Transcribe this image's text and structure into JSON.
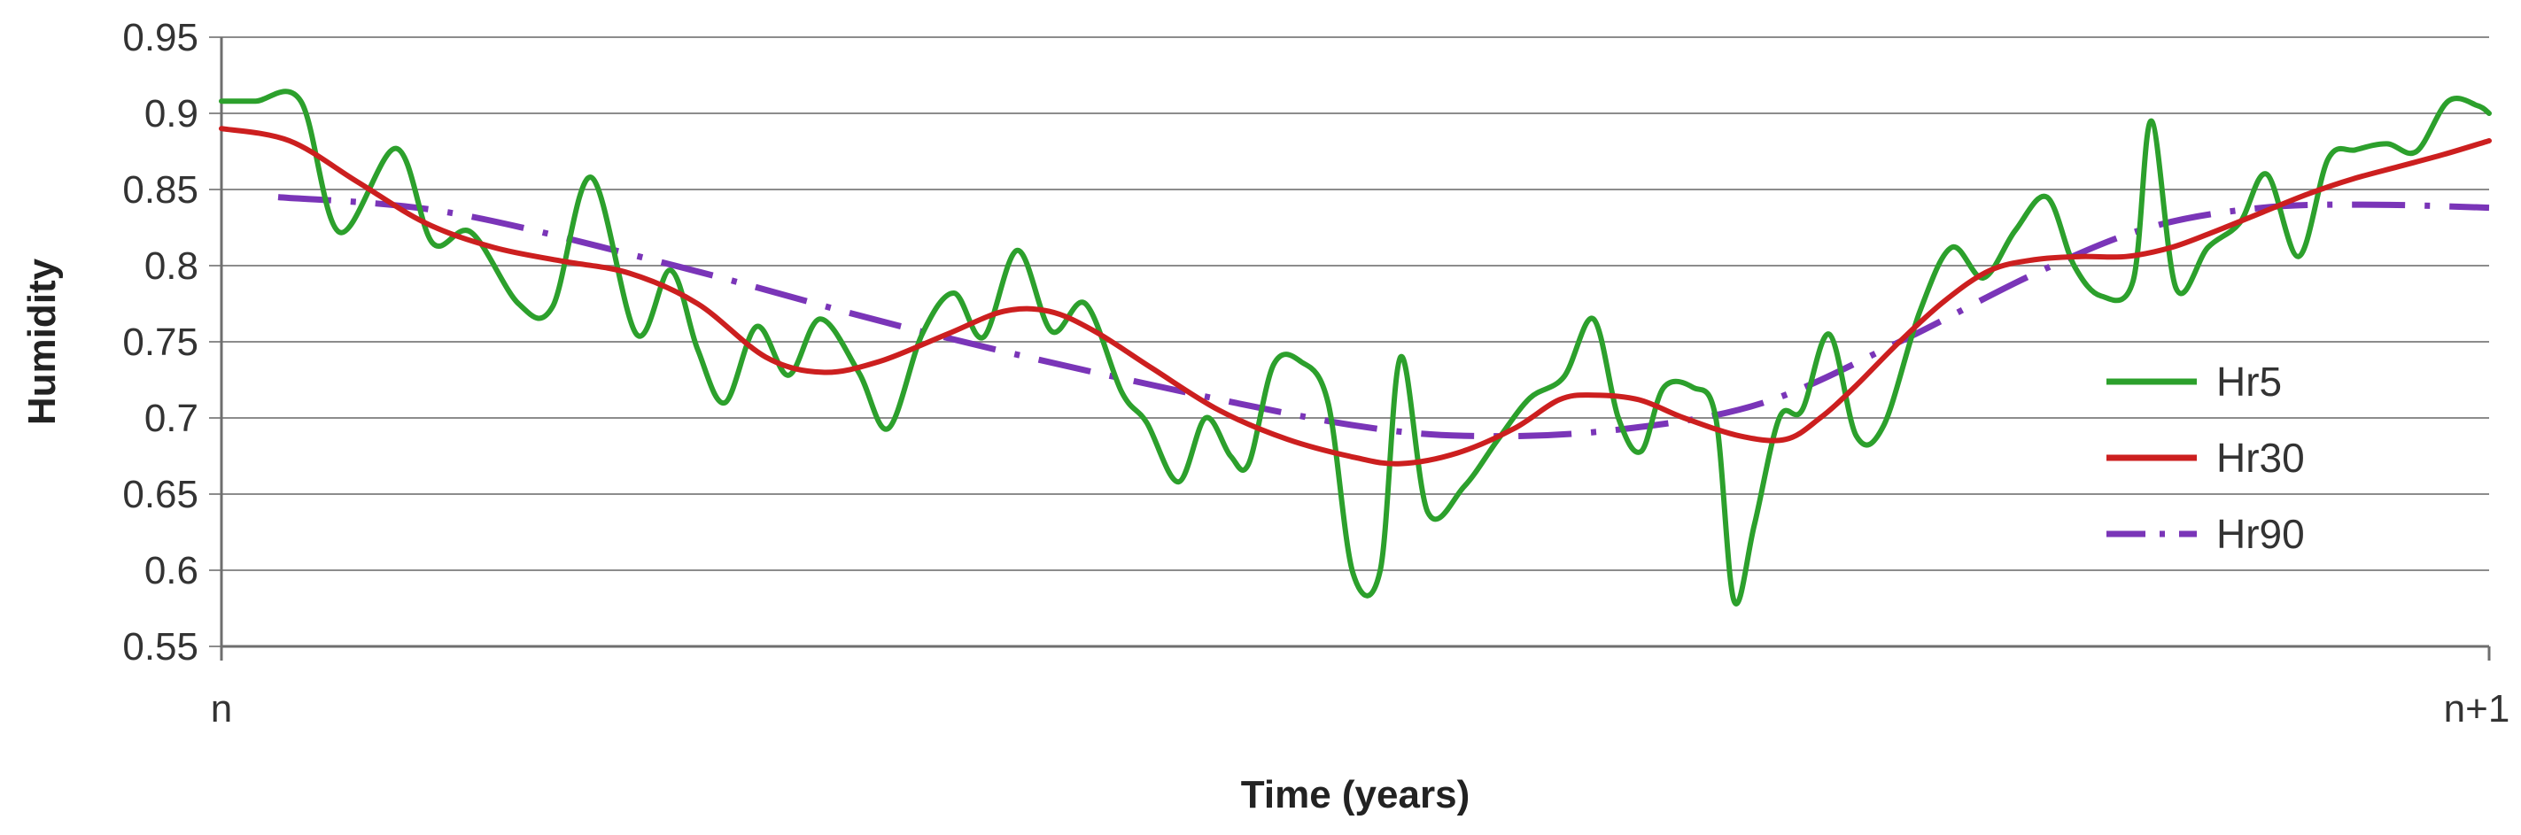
{
  "chart_data": {
    "type": "line",
    "title": "",
    "xlabel": "Time (years)",
    "ylabel": "Humidity",
    "x_tick_labels": [
      "n",
      "n+1"
    ],
    "xlim": [
      0,
      1
    ],
    "ylim": [
      0.55,
      0.95
    ],
    "y_ticks": [
      0.55,
      0.6,
      0.65,
      0.7,
      0.75,
      0.8,
      0.85,
      0.9,
      0.95
    ],
    "y_tick_labels": [
      "0.55",
      "0.6",
      "0.65",
      "0.7",
      "0.75",
      "0.8",
      "0.85",
      "0.9",
      "0.95"
    ],
    "grid": true,
    "legend_position": "right",
    "series": [
      {
        "name": "Hr5",
        "color": "#2ca02c",
        "style": "solid",
        "points": [
          [
            0.0,
            0.908
          ],
          [
            0.015,
            0.908
          ],
          [
            0.035,
            0.908
          ],
          [
            0.052,
            0.822
          ],
          [
            0.077,
            0.877
          ],
          [
            0.093,
            0.815
          ],
          [
            0.11,
            0.822
          ],
          [
            0.131,
            0.775
          ],
          [
            0.146,
            0.773
          ],
          [
            0.163,
            0.858
          ],
          [
            0.183,
            0.755
          ],
          [
            0.198,
            0.797
          ],
          [
            0.21,
            0.745
          ],
          [
            0.222,
            0.71
          ],
          [
            0.236,
            0.76
          ],
          [
            0.25,
            0.728
          ],
          [
            0.264,
            0.765
          ],
          [
            0.281,
            0.73
          ],
          [
            0.294,
            0.693
          ],
          [
            0.309,
            0.755
          ],
          [
            0.323,
            0.782
          ],
          [
            0.336,
            0.753
          ],
          [
            0.351,
            0.81
          ],
          [
            0.366,
            0.757
          ],
          [
            0.381,
            0.775
          ],
          [
            0.397,
            0.717
          ],
          [
            0.408,
            0.697
          ],
          [
            0.422,
            0.658
          ],
          [
            0.434,
            0.7
          ],
          [
            0.445,
            0.675
          ],
          [
            0.453,
            0.67
          ],
          [
            0.464,
            0.735
          ],
          [
            0.476,
            0.737
          ],
          [
            0.488,
            0.71
          ],
          [
            0.499,
            0.598
          ],
          [
            0.511,
            0.6
          ],
          [
            0.52,
            0.74
          ],
          [
            0.532,
            0.638
          ],
          [
            0.548,
            0.655
          ],
          [
            0.563,
            0.686
          ],
          [
            0.577,
            0.713
          ],
          [
            0.592,
            0.727
          ],
          [
            0.605,
            0.765
          ],
          [
            0.616,
            0.7
          ],
          [
            0.626,
            0.678
          ],
          [
            0.636,
            0.72
          ],
          [
            0.649,
            0.72
          ],
          [
            0.659,
            0.7
          ],
          [
            0.667,
            0.58
          ],
          [
            0.676,
            0.63
          ],
          [
            0.687,
            0.7
          ],
          [
            0.697,
            0.705
          ],
          [
            0.709,
            0.755
          ],
          [
            0.721,
            0.688
          ],
          [
            0.733,
            0.695
          ],
          [
            0.749,
            0.77
          ],
          [
            0.763,
            0.812
          ],
          [
            0.777,
            0.792
          ],
          [
            0.791,
            0.823
          ],
          [
            0.805,
            0.845
          ],
          [
            0.817,
            0.8
          ],
          [
            0.829,
            0.78
          ],
          [
            0.843,
            0.79
          ],
          [
            0.851,
            0.895
          ],
          [
            0.862,
            0.785
          ],
          [
            0.876,
            0.812
          ],
          [
            0.89,
            0.828
          ],
          [
            0.902,
            0.86
          ],
          [
            0.916,
            0.806
          ],
          [
            0.929,
            0.87
          ],
          [
            0.941,
            0.876
          ],
          [
            0.955,
            0.88
          ],
          [
            0.968,
            0.875
          ],
          [
            0.982,
            0.908
          ],
          [
            0.995,
            0.905
          ],
          [
            1.0,
            0.9
          ]
        ]
      },
      {
        "name": "Hr30",
        "color": "#cc1f1f",
        "style": "solid",
        "points": [
          [
            0.0,
            0.89
          ],
          [
            0.03,
            0.882
          ],
          [
            0.06,
            0.855
          ],
          [
            0.09,
            0.828
          ],
          [
            0.12,
            0.812
          ],
          [
            0.15,
            0.803
          ],
          [
            0.18,
            0.795
          ],
          [
            0.21,
            0.775
          ],
          [
            0.24,
            0.74
          ],
          [
            0.265,
            0.73
          ],
          [
            0.29,
            0.737
          ],
          [
            0.32,
            0.755
          ],
          [
            0.345,
            0.77
          ],
          [
            0.365,
            0.77
          ],
          [
            0.385,
            0.757
          ],
          [
            0.41,
            0.733
          ],
          [
            0.44,
            0.705
          ],
          [
            0.47,
            0.686
          ],
          [
            0.5,
            0.674
          ],
          [
            0.52,
            0.67
          ],
          [
            0.545,
            0.677
          ],
          [
            0.57,
            0.693
          ],
          [
            0.59,
            0.712
          ],
          [
            0.605,
            0.715
          ],
          [
            0.625,
            0.712
          ],
          [
            0.645,
            0.7
          ],
          [
            0.67,
            0.688
          ],
          [
            0.69,
            0.686
          ],
          [
            0.705,
            0.7
          ],
          [
            0.72,
            0.72
          ],
          [
            0.74,
            0.75
          ],
          [
            0.76,
            0.777
          ],
          [
            0.78,
            0.797
          ],
          [
            0.8,
            0.804
          ],
          [
            0.82,
            0.806
          ],
          [
            0.84,
            0.806
          ],
          [
            0.86,
            0.812
          ],
          [
            0.88,
            0.823
          ],
          [
            0.9,
            0.835
          ],
          [
            0.92,
            0.847
          ],
          [
            0.94,
            0.857
          ],
          [
            0.96,
            0.865
          ],
          [
            0.98,
            0.873
          ],
          [
            1.0,
            0.882
          ]
        ]
      },
      {
        "name": "Hr90",
        "color": "#7a35b8",
        "style": "dash-dot",
        "points": [
          [
            0.025,
            0.845
          ],
          [
            0.1,
            0.835
          ],
          [
            0.2,
            0.8
          ],
          [
            0.3,
            0.76
          ],
          [
            0.4,
            0.725
          ],
          [
            0.5,
            0.695
          ],
          [
            0.56,
            0.688
          ],
          [
            0.62,
            0.693
          ],
          [
            0.68,
            0.71
          ],
          [
            0.74,
            0.75
          ],
          [
            0.8,
            0.795
          ],
          [
            0.85,
            0.825
          ],
          [
            0.9,
            0.838
          ],
          [
            0.95,
            0.84
          ],
          [
            1.0,
            0.838
          ]
        ]
      }
    ]
  }
}
